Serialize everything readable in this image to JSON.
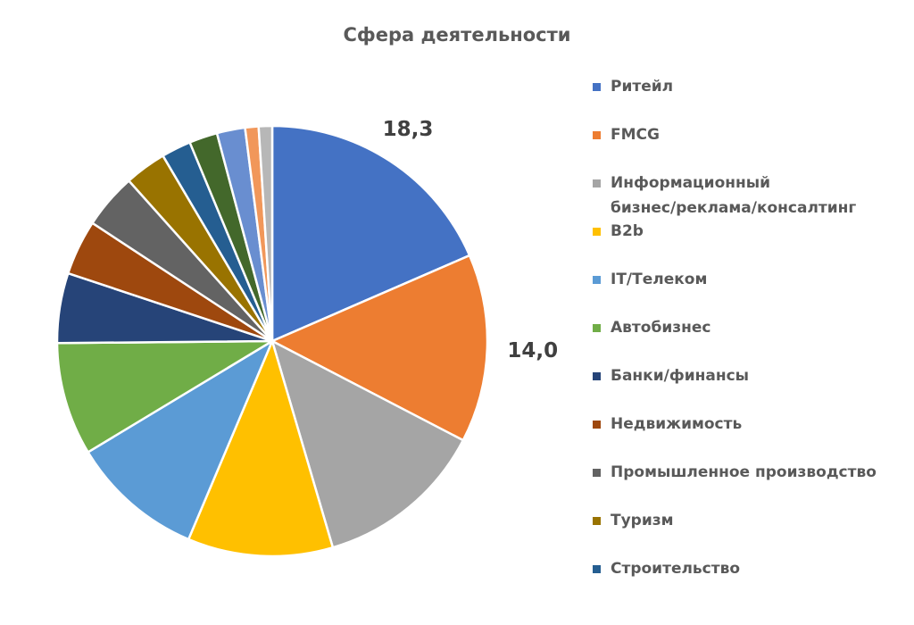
{
  "chart_data": {
    "type": "pie",
    "title": "Сфера деятельности",
    "categories": [
      "Ритейл",
      "FMCG",
      "Информационный бизнес/реклама/консалтинг",
      "B2b",
      "IT/Телеком",
      "Автобизнес",
      "Банки/финансы",
      "Недвижимость",
      "Промышленное производство",
      "Туризм",
      "Строительство",
      "",
      "",
      "",
      ""
    ],
    "values": [
      18.3,
      14.0,
      12.7,
      10.8,
      9.9,
      8.4,
      5.2,
      4.1,
      4.1,
      3.1,
      2.2,
      2.1,
      2.1,
      1.0,
      1.0
    ],
    "colors": [
      "#4472C4",
      "#ED7D31",
      "#A5A5A5",
      "#FFC000",
      "#5B9BD5",
      "#70AD47",
      "#264478",
      "#9E480E",
      "#636363",
      "#997300",
      "#255E91",
      "#43682B",
      "#698ED0",
      "#F1975A",
      "#B7B7B7"
    ],
    "data_labels": [
      {
        "index": 0,
        "text": "18,3"
      },
      {
        "index": 1,
        "text": "14,0"
      }
    ],
    "legend_position": "right",
    "legend_items": [
      {
        "label_lines": [
          "Ритейл"
        ],
        "color": "#4472C4"
      },
      {
        "label_lines": [
          "FMCG"
        ],
        "color": "#ED7D31"
      },
      {
        "label_lines": [
          "Информационный",
          "бизнес/реклама/консалтинг"
        ],
        "color": "#A5A5A5"
      },
      {
        "label_lines": [
          "B2b"
        ],
        "color": "#FFC000"
      },
      {
        "label_lines": [
          "IT/Телеком"
        ],
        "color": "#5B9BD5"
      },
      {
        "label_lines": [
          "Автобизнес"
        ],
        "color": "#70AD47"
      },
      {
        "label_lines": [
          "Банки/финансы"
        ],
        "color": "#264478"
      },
      {
        "label_lines": [
          "Недвижимость"
        ],
        "color": "#9E480E"
      },
      {
        "label_lines": [
          "Промышленное производство"
        ],
        "color": "#636363"
      },
      {
        "label_lines": [
          "Туризм"
        ],
        "color": "#997300"
      },
      {
        "label_lines": [
          "Строительство"
        ],
        "color": "#255E91"
      }
    ]
  }
}
